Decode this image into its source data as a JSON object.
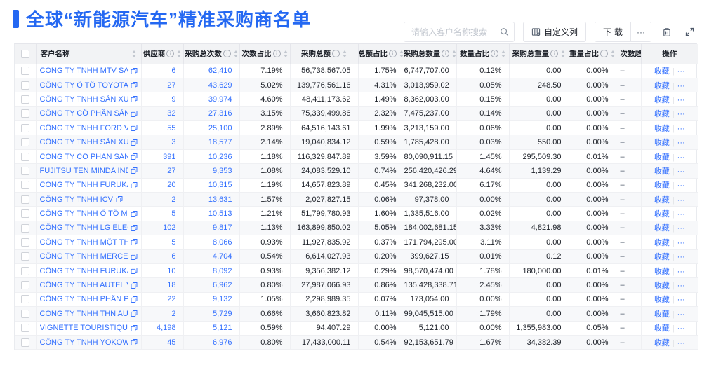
{
  "page": {
    "title": "全球“新能源汽车”精准采购商名单"
  },
  "toolbar": {
    "search": {
      "placeholder": "请输入客户名称搜索",
      "value": ""
    },
    "custom_columns_label": "自定义列",
    "download_label": "下载",
    "more_label": "···"
  },
  "table": {
    "columns": [
      {
        "key": "checkbox",
        "label": "",
        "info": false,
        "sort": false
      },
      {
        "key": "name",
        "label": "客户名称",
        "info": false,
        "sort": true
      },
      {
        "key": "suppliers",
        "label": "供应商",
        "info": true,
        "sort": true
      },
      {
        "key": "total_count",
        "label": "采购总次数",
        "info": true,
        "sort": true
      },
      {
        "key": "count_pct",
        "label": "次数占比",
        "info": true,
        "sort": true
      },
      {
        "key": "total_amount",
        "label": "采购总额",
        "info": true,
        "sort": true
      },
      {
        "key": "amount_pct",
        "label": "总额占比",
        "info": true,
        "sort": true
      },
      {
        "key": "total_qty",
        "label": "采购总数量",
        "info": true,
        "sort": true
      },
      {
        "key": "qty_pct",
        "label": "数量占比",
        "info": true,
        "sort": true
      },
      {
        "key": "total_weight",
        "label": "采购总重量",
        "info": true,
        "sort": true
      },
      {
        "key": "weight_pct",
        "label": "重量占比",
        "info": true,
        "sort": true
      },
      {
        "key": "trend",
        "label": "次数趋势",
        "info": false,
        "sort": false
      },
      {
        "key": "ops",
        "label": "操作",
        "info": false,
        "sort": false
      }
    ],
    "actions": {
      "favorite": "收藏",
      "divider": "|",
      "more": "···"
    },
    "rows": [
      {
        "name": "CÔNG TY TNHH MTV SẢN XUẤ...",
        "suppliers": "6",
        "total_count": "62,410",
        "count_pct": "7.19%",
        "total_amount": "56,738,567.05",
        "amount_pct": "1.75%",
        "total_qty": "6,747,707.00",
        "qty_pct": "0.12%",
        "total_weight": "0.00",
        "weight_pct": "0.00%",
        "trend": "–"
      },
      {
        "name": "CÔNG TY Ô TÔ TOYOTA VIỆT ...",
        "suppliers": "27",
        "total_count": "43,629",
        "count_pct": "5.02%",
        "total_amount": "139,776,561.16",
        "amount_pct": "4.31%",
        "total_qty": "3,013,959.02",
        "qty_pct": "0.05%",
        "total_weight": "248.50",
        "weight_pct": "0.00%",
        "trend": "–"
      },
      {
        "name": "CÔNG TY TNHH SẢN XUẤT VÀ ...",
        "suppliers": "9",
        "total_count": "39,974",
        "count_pct": "4.60%",
        "total_amount": "48,411,173.62",
        "amount_pct": "1.49%",
        "total_qty": "8,362,003.00",
        "qty_pct": "0.15%",
        "total_weight": "0.00",
        "weight_pct": "0.00%",
        "trend": "–"
      },
      {
        "name": "CÔNG TY CỔ PHẦN SẢN XUẤT...",
        "suppliers": "32",
        "total_count": "27,316",
        "count_pct": "3.15%",
        "total_amount": "75,339,499.86",
        "amount_pct": "2.32%",
        "total_qty": "7,475,237.00",
        "qty_pct": "0.14%",
        "total_weight": "0.00",
        "weight_pct": "0.00%",
        "trend": "–"
      },
      {
        "name": "CÔNG TY TNHH FORD VIỆT NAM",
        "suppliers": "55",
        "total_count": "25,100",
        "count_pct": "2.89%",
        "total_amount": "64,516,143.61",
        "amount_pct": "1.99%",
        "total_qty": "3,213,159.00",
        "qty_pct": "0.06%",
        "total_weight": "0.00",
        "weight_pct": "0.00%",
        "trend": "–"
      },
      {
        "name": "CÔNG TY TNHH SẢN XUẤT VÀ ...",
        "suppliers": "3",
        "total_count": "18,577",
        "count_pct": "2.14%",
        "total_amount": "19,040,834.12",
        "amount_pct": "0.59%",
        "total_qty": "1,785,428.00",
        "qty_pct": "0.03%",
        "total_weight": "550.00",
        "weight_pct": "0.00%",
        "trend": "–"
      },
      {
        "name": "CÔNG TY CỔ PHẦN SẢN XUẤT...",
        "suppliers": "391",
        "total_count": "10,236",
        "count_pct": "1.18%",
        "total_amount": "116,329,847.89",
        "amount_pct": "3.59%",
        "total_qty": "80,090,911.15",
        "qty_pct": "1.45%",
        "total_weight": "295,509.30",
        "weight_pct": "0.01%",
        "trend": "–"
      },
      {
        "name": "FUJITSU TEN MINDA INDIA PVT...",
        "suppliers": "27",
        "total_count": "9,353",
        "count_pct": "1.08%",
        "total_amount": "24,083,529.10",
        "amount_pct": "0.74%",
        "total_qty": "256,420,426.29",
        "qty_pct": "4.64%",
        "total_weight": "1,139.29",
        "weight_pct": "0.00%",
        "trend": "–"
      },
      {
        "name": "CÔNG TY TNHH FURUKAWA A...",
        "suppliers": "20",
        "total_count": "10,315",
        "count_pct": "1.19%",
        "total_amount": "14,657,823.89",
        "amount_pct": "0.45%",
        "total_qty": "341,268,232.00",
        "qty_pct": "6.17%",
        "total_weight": "0.00",
        "weight_pct": "0.00%",
        "trend": "–"
      },
      {
        "name": "CÔNG TY TNHH ICV",
        "suppliers": "2",
        "total_count": "13,631",
        "count_pct": "1.57%",
        "total_amount": "2,027,827.15",
        "amount_pct": "0.06%",
        "total_qty": "97,378.00",
        "qty_pct": "0.00%",
        "total_weight": "0.00",
        "weight_pct": "0.00%",
        "trend": "–"
      },
      {
        "name": "CÔNG TY TNHH Ô TÔ MITSUBI...",
        "suppliers": "5",
        "total_count": "10,513",
        "count_pct": "1.21%",
        "total_amount": "51,799,780.93",
        "amount_pct": "1.60%",
        "total_qty": "1,335,516.00",
        "qty_pct": "0.02%",
        "total_weight": "0.00",
        "weight_pct": "0.00%",
        "trend": "–"
      },
      {
        "name": "CÔNG TY TNHH LG ELECTRON...",
        "suppliers": "102",
        "total_count": "9,817",
        "count_pct": "1.13%",
        "total_amount": "163,899,850.02",
        "amount_pct": "5.05%",
        "total_qty": "184,002,681.15",
        "qty_pct": "3.33%",
        "total_weight": "4,821.98",
        "weight_pct": "0.00%",
        "trend": "–"
      },
      {
        "name": "CÔNG TY TNHH MỘT THÀNH V...",
        "suppliers": "5",
        "total_count": "8,066",
        "count_pct": "0.93%",
        "total_amount": "11,927,835.92",
        "amount_pct": "0.37%",
        "total_qty": "171,794,295.00",
        "qty_pct": "3.11%",
        "total_weight": "0.00",
        "weight_pct": "0.00%",
        "trend": "–"
      },
      {
        "name": "CÔNG TY TNHH MERCEDES-B...",
        "suppliers": "6",
        "total_count": "4,704",
        "count_pct": "0.54%",
        "total_amount": "6,614,027.93",
        "amount_pct": "0.20%",
        "total_qty": "399,627.15",
        "qty_pct": "0.01%",
        "total_weight": "0.12",
        "weight_pct": "0.00%",
        "trend": "–"
      },
      {
        "name": "CÔNG TY TNHH FURUKAWA A...",
        "suppliers": "10",
        "total_count": "8,092",
        "count_pct": "0.93%",
        "total_amount": "9,356,382.12",
        "amount_pct": "0.29%",
        "total_qty": "98,570,474.00",
        "qty_pct": "1.78%",
        "total_weight": "180,000.00",
        "weight_pct": "0.01%",
        "trend": "–"
      },
      {
        "name": "CÔNG TY TNHH AUTEL VIỆT N...",
        "suppliers": "18",
        "total_count": "6,962",
        "count_pct": "0.80%",
        "total_amount": "27,987,066.93",
        "amount_pct": "0.86%",
        "total_qty": "135,428,338.71",
        "qty_pct": "2.45%",
        "total_weight": "0.00",
        "weight_pct": "0.00%",
        "trend": "–"
      },
      {
        "name": "CÔNG TY TNHH PHÂN PHỐI T...",
        "suppliers": "22",
        "total_count": "9,132",
        "count_pct": "1.05%",
        "total_amount": "2,298,989.35",
        "amount_pct": "0.07%",
        "total_qty": "173,054.00",
        "qty_pct": "0.00%",
        "total_weight": "0.00",
        "weight_pct": "0.00%",
        "trend": "–"
      },
      {
        "name": "CÔNG TY TNHH THN AUTOPAR...",
        "suppliers": "2",
        "total_count": "5,729",
        "count_pct": "0.66%",
        "total_amount": "3,660,823.82",
        "amount_pct": "0.11%",
        "total_qty": "99,045,515.00",
        "qty_pct": "1.79%",
        "total_weight": "0.00",
        "weight_pct": "0.00%",
        "trend": "–"
      },
      {
        "name": "VIGNETTE TOURISTIQUE G UNI...",
        "suppliers": "4,198",
        "total_count": "5,121",
        "count_pct": "0.59%",
        "total_amount": "94,407.29",
        "amount_pct": "0.00%",
        "total_qty": "5,121.00",
        "qty_pct": "0.00%",
        "total_weight": "1,355,983.00",
        "weight_pct": "0.05%",
        "trend": "–"
      },
      {
        "name": "CÔNG TY TNHH YOKOWO VIỆT...",
        "suppliers": "45",
        "total_count": "6,976",
        "count_pct": "0.80%",
        "total_amount": "17,433,000.11",
        "amount_pct": "0.54%",
        "total_qty": "92,153,651.79",
        "qty_pct": "1.67%",
        "total_weight": "34,382.39",
        "weight_pct": "0.00%",
        "trend": "–"
      }
    ]
  },
  "colors": {
    "accent": "#2468F2",
    "link": "#3370FF",
    "header_bg": "#F2F3F5",
    "row_alt_bg": "#F7F8FA",
    "border": "#E5E6EB",
    "text": "#1D2129"
  }
}
